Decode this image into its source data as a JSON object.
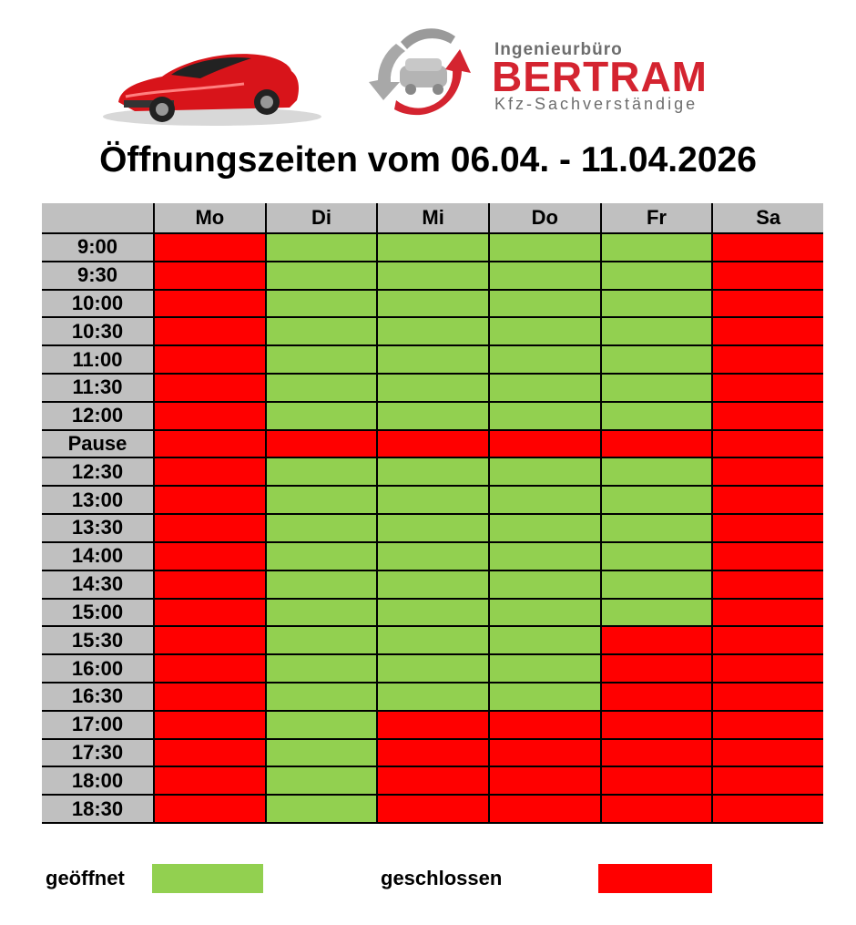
{
  "brand": {
    "top": "Ingenieurbüro",
    "name": "BERTRAM",
    "sub": "Kfz-Sachverständige"
  },
  "title": "Öffnungszeiten vom 06.04. - 11.04.2026",
  "days": [
    "Mo",
    "Di",
    "Mi",
    "Do",
    "Fr",
    "Sa"
  ],
  "rows": [
    {
      "time": "9:00",
      "status": [
        0,
        1,
        1,
        1,
        1,
        0
      ]
    },
    {
      "time": "9:30",
      "status": [
        0,
        1,
        1,
        1,
        1,
        0
      ]
    },
    {
      "time": "10:00",
      "status": [
        0,
        1,
        1,
        1,
        1,
        0
      ]
    },
    {
      "time": "10:30",
      "status": [
        0,
        1,
        1,
        1,
        1,
        0
      ]
    },
    {
      "time": "11:00",
      "status": [
        0,
        1,
        1,
        1,
        1,
        0
      ]
    },
    {
      "time": "11:30",
      "status": [
        0,
        1,
        1,
        1,
        1,
        0
      ]
    },
    {
      "time": "12:00",
      "status": [
        0,
        1,
        1,
        1,
        1,
        0
      ]
    },
    {
      "time": "Pause",
      "status": [
        0,
        0,
        0,
        0,
        0,
        0
      ]
    },
    {
      "time": "12:30",
      "status": [
        0,
        1,
        1,
        1,
        1,
        0
      ]
    },
    {
      "time": "13:00",
      "status": [
        0,
        1,
        1,
        1,
        1,
        0
      ]
    },
    {
      "time": "13:30",
      "status": [
        0,
        1,
        1,
        1,
        1,
        0
      ]
    },
    {
      "time": "14:00",
      "status": [
        0,
        1,
        1,
        1,
        1,
        0
      ]
    },
    {
      "time": "14:30",
      "status": [
        0,
        1,
        1,
        1,
        1,
        0
      ]
    },
    {
      "time": "15:00",
      "status": [
        0,
        1,
        1,
        1,
        1,
        0
      ]
    },
    {
      "time": "15:30",
      "status": [
        0,
        1,
        1,
        1,
        0,
        0
      ]
    },
    {
      "time": "16:00",
      "status": [
        0,
        1,
        1,
        1,
        0,
        0
      ]
    },
    {
      "time": "16:30",
      "status": [
        0,
        1,
        1,
        1,
        0,
        0
      ]
    },
    {
      "time": "17:00",
      "status": [
        0,
        1,
        0,
        0,
        0,
        0
      ]
    },
    {
      "time": "17:30",
      "status": [
        0,
        1,
        0,
        0,
        0,
        0
      ]
    },
    {
      "time": "18:00",
      "status": [
        0,
        1,
        0,
        0,
        0,
        0
      ]
    },
    {
      "time": "18:30",
      "status": [
        0,
        1,
        0,
        0,
        0,
        0
      ]
    }
  ],
  "legend": {
    "open_label": "geöffnet",
    "closed_label": "geschlossen"
  },
  "colors": {
    "open": "#92d050",
    "closed": "#ff0000",
    "header_bg": "#c0c0c0",
    "brand_red": "#d42430",
    "brand_gray": "#6d6d6d"
  },
  "icons": [
    "red-sports-car-icon",
    "bertram-logo-icon"
  ]
}
